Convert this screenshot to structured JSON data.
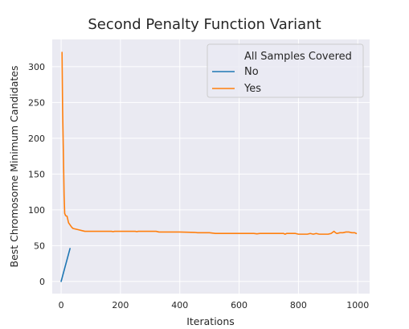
{
  "chart_data": {
    "type": "line",
    "title": "Second Penalty Function Variant",
    "xlabel": "Iterations",
    "ylabel": "Best Chromosome Minimum Candidates",
    "xlim": [
      -30,
      1040
    ],
    "ylim": [
      -17,
      338
    ],
    "xticks": [
      0,
      200,
      400,
      600,
      800,
      1000
    ],
    "yticks": [
      0,
      50,
      100,
      150,
      200,
      250,
      300
    ],
    "grid": true,
    "legend": {
      "title": "All Samples Covered",
      "placement": "top-right"
    },
    "series": [
      {
        "name": "No",
        "color": "#1f77b4",
        "points": [
          [
            0,
            0
          ],
          [
            30,
            46
          ]
        ]
      },
      {
        "name": "Yes",
        "color": "#ff7f0e",
        "points": [
          [
            3,
            320
          ],
          [
            5,
            240
          ],
          [
            8,
            170
          ],
          [
            10,
            120
          ],
          [
            12,
            95
          ],
          [
            15,
            92
          ],
          [
            20,
            91
          ],
          [
            25,
            82
          ],
          [
            30,
            79
          ],
          [
            35,
            76
          ],
          [
            40,
            74
          ],
          [
            50,
            73
          ],
          [
            60,
            72
          ],
          [
            70,
            71
          ],
          [
            80,
            70
          ],
          [
            120,
            70
          ],
          [
            170,
            70
          ],
          [
            175,
            69.5
          ],
          [
            180,
            70
          ],
          [
            250,
            70
          ],
          [
            255,
            69.5
          ],
          [
            260,
            70
          ],
          [
            320,
            70
          ],
          [
            330,
            69
          ],
          [
            400,
            69
          ],
          [
            450,
            68.5
          ],
          [
            460,
            68
          ],
          [
            500,
            68
          ],
          [
            520,
            67
          ],
          [
            600,
            67
          ],
          [
            650,
            67
          ],
          [
            660,
            66.5
          ],
          [
            670,
            67
          ],
          [
            750,
            67
          ],
          [
            755,
            66
          ],
          [
            760,
            67
          ],
          [
            790,
            67
          ],
          [
            800,
            66
          ],
          [
            830,
            66
          ],
          [
            840,
            67
          ],
          [
            850,
            66
          ],
          [
            860,
            67
          ],
          [
            870,
            66
          ],
          [
            880,
            66
          ],
          [
            900,
            66
          ],
          [
            910,
            67
          ],
          [
            920,
            70
          ],
          [
            925,
            68
          ],
          [
            930,
            67
          ],
          [
            940,
            68
          ],
          [
            950,
            68
          ],
          [
            960,
            69
          ],
          [
            970,
            69
          ],
          [
            980,
            68
          ],
          [
            990,
            68
          ],
          [
            995,
            67
          ]
        ]
      }
    ]
  }
}
